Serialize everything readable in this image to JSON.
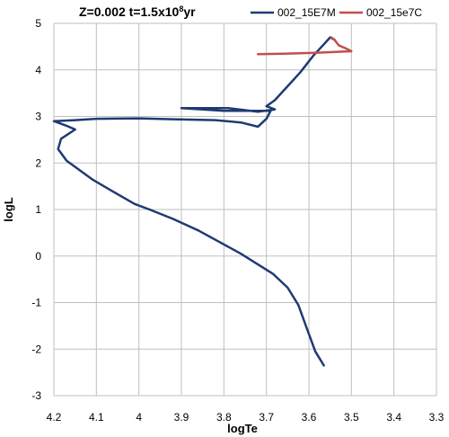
{
  "chart_data": {
    "type": "line",
    "title_prefix": "Z=0.002 t=1.5x10",
    "title_exponent": "8",
    "title_suffix": "yr",
    "xlabel": "logTe",
    "ylabel": "logL",
    "xlim": [
      4.2,
      3.3
    ],
    "ylim": [
      -3,
      5
    ],
    "x_reversed": true,
    "grid": true,
    "legend_position": "top-right",
    "x_ticks": [
      "4.2",
      "4.1",
      "4",
      "3.9",
      "3.8",
      "3.7",
      "3.6",
      "3.5",
      "3.4",
      "3.3"
    ],
    "y_ticks": [
      "5",
      "4",
      "3",
      "2",
      "1",
      "0",
      "-1",
      "-2",
      "-3"
    ],
    "series": [
      {
        "name": "002_15E7M",
        "color": "#1f3a73",
        "points": [
          [
            3.565,
            -2.35
          ],
          [
            3.585,
            -2.05
          ],
          [
            3.605,
            -1.55
          ],
          [
            3.625,
            -1.05
          ],
          [
            3.65,
            -0.68
          ],
          [
            3.685,
            -0.38
          ],
          [
            3.72,
            -0.18
          ],
          [
            3.76,
            0.05
          ],
          [
            3.8,
            0.25
          ],
          [
            3.86,
            0.55
          ],
          [
            3.92,
            0.8
          ],
          [
            3.975,
            1.0
          ],
          [
            4.01,
            1.12
          ],
          [
            4.06,
            1.38
          ],
          [
            4.11,
            1.65
          ],
          [
            4.17,
            2.05
          ],
          [
            4.19,
            2.3
          ],
          [
            4.183,
            2.52
          ],
          [
            4.15,
            2.72
          ],
          [
            4.17,
            2.8
          ],
          [
            4.2,
            2.9
          ],
          [
            4.15,
            2.92
          ],
          [
            4.1,
            2.95
          ],
          [
            4.0,
            2.96
          ],
          [
            3.92,
            2.94
          ],
          [
            3.82,
            2.92
          ],
          [
            3.76,
            2.87
          ],
          [
            3.72,
            2.78
          ],
          [
            3.7,
            2.95
          ],
          [
            3.69,
            3.12
          ],
          [
            3.8,
            3.12
          ],
          [
            3.9,
            3.18
          ],
          [
            3.79,
            3.18
          ],
          [
            3.72,
            3.1
          ],
          [
            3.68,
            3.15
          ],
          [
            3.7,
            3.22
          ],
          [
            3.68,
            3.35
          ],
          [
            3.65,
            3.65
          ],
          [
            3.62,
            3.95
          ],
          [
            3.59,
            4.3
          ],
          [
            3.565,
            4.55
          ],
          [
            3.55,
            4.7
          ],
          [
            3.54,
            4.65
          ]
        ]
      },
      {
        "name": "002_15e7C",
        "color": "#c0504d",
        "points": [
          [
            3.72,
            4.34
          ],
          [
            3.65,
            4.35
          ],
          [
            3.58,
            4.37
          ],
          [
            3.5,
            4.4
          ],
          [
            3.51,
            4.45
          ],
          [
            3.53,
            4.53
          ],
          [
            3.54,
            4.65
          ],
          [
            3.548,
            4.7
          ]
        ]
      }
    ]
  }
}
